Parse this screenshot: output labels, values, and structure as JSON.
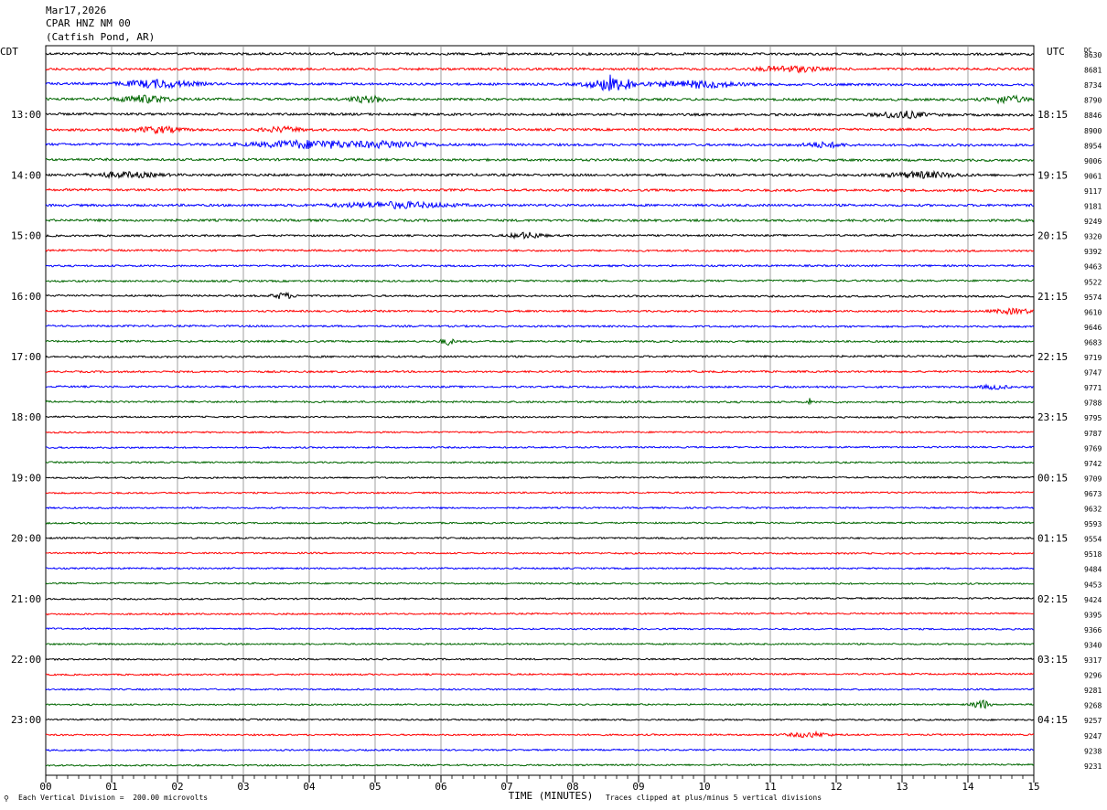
{
  "header": {
    "date": "Mar17,2026",
    "station": "CPAR HNZ NM 00",
    "location": "(Catfish Pond, AR)"
  },
  "left_axis_label": "CDT",
  "right_axis_label": "UTC",
  "dc_label": "DC",
  "colors": {
    "cycle": [
      "#000000",
      "#ff0000",
      "#0000ff",
      "#006600"
    ],
    "grid": "#888888"
  },
  "footer": {
    "scale_note": "Each Vertical Division =  200.00 microvolts",
    "clip_note": "Traces clipped at plus/minus 5 vertical divisions"
  },
  "chart_data": {
    "type": "line",
    "xlabel": "TIME (MINUTES)",
    "x_ticks": [
      "00",
      "01",
      "02",
      "03",
      "04",
      "05",
      "06",
      "07",
      "08",
      "09",
      "10",
      "11",
      "12",
      "13",
      "14",
      "15"
    ],
    "xlim": [
      0,
      15
    ],
    "left_time_labels": [
      "13:00",
      "14:00",
      "15:00",
      "16:00",
      "17:00",
      "18:00",
      "19:00",
      "20:00",
      "21:00",
      "22:00",
      "23:00"
    ],
    "right_time_labels": [
      "18:15",
      "19:15",
      "20:15",
      "21:15",
      "22:15",
      "23:15",
      "00:15",
      "01:15",
      "02:15",
      "03:15",
      "04:15"
    ],
    "dc_offsets": [
      "8630",
      "8681",
      "8734",
      "8790",
      "8846",
      "8900",
      "8954",
      "9006",
      "9061",
      "9117",
      "9181",
      "9249",
      "9320",
      "9392",
      "9463",
      "9522",
      "9574",
      "9610",
      "9646",
      "9683",
      "9719",
      "9747",
      "9771",
      "9788",
      "9795",
      "9787",
      "9769",
      "9742",
      "9709",
      "9673",
      "9632",
      "9593",
      "9554",
      "9518",
      "9484",
      "9453",
      "9424",
      "9395",
      "9366",
      "9340",
      "9317",
      "9296",
      "9281",
      "9268",
      "9257",
      "9247",
      "9238",
      "9231"
    ],
    "grid": true
  }
}
